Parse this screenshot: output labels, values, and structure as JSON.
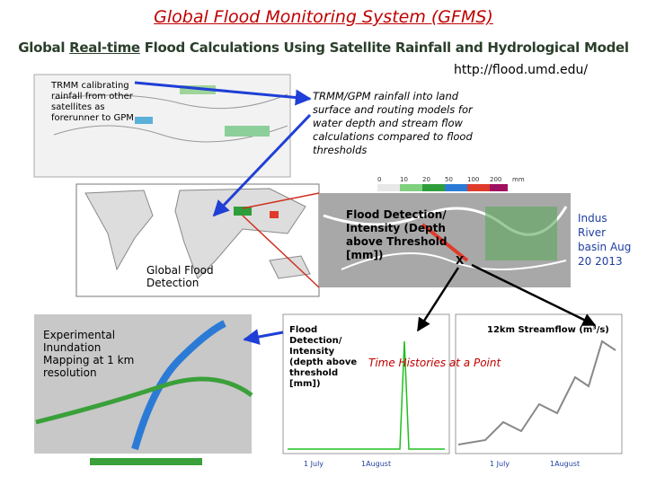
{
  "header": {
    "title": "Global Flood Monitoring System (GFMS)",
    "subtitle_parts": [
      "Global ",
      "Real-time",
      " Flood Calculations Using Satellite Rainfall and Hydrological Model"
    ],
    "url": "http://flood.umd.edu/"
  },
  "callouts": {
    "trmm": "TRMM calibrating rainfall from other satellites as forerunner to GPM",
    "models": "TRMM/GPM rainfall into land surface and routing models for water depth and stream flow calculations compared to flood thresholds",
    "global": "Global Flood Detection",
    "inset": "Flood Detection/ Intensity (Depth above Threshold [mm])",
    "indus": "Indus River basin Aug 20 2013",
    "point": "X",
    "inundation": "Experimental Inundation Mapping at 1 km resolution",
    "depth_chart": "Flood Detection/ Intensity (depth above threshold [mm])",
    "histories": "Time Histories at a Point",
    "streamflow": "12km Streamflow (m³/s)"
  },
  "colorbar": [
    "0",
    "10",
    "20",
    "50",
    "100",
    "200",
    "mm"
  ],
  "time_labels": [
    "1 July",
    "1August",
    "1 July",
    "1August"
  ]
}
